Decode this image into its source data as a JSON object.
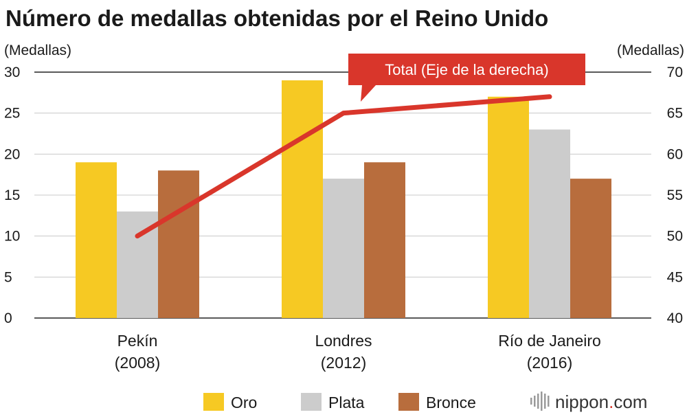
{
  "colors": {
    "gold": "#f6c923",
    "silver": "#cccccc",
    "bronze": "#b86d3d",
    "total": "#d9362b",
    "brand_text": "#333333",
    "brand_accent": "#d9362b"
  },
  "brand": {
    "name": "nippon",
    "dot": ".",
    "tld": "com",
    "icon": "sound-wave-icon"
  },
  "chart_data": {
    "type": "bar",
    "title": "Número de medallas obtenidas por el Reino Unido",
    "y_left_unit": "(Medallas)",
    "y_right_unit": "(Medallas)",
    "categories": [
      [
        "Pekín",
        "(2008)"
      ],
      [
        "Londres",
        "(2012)"
      ],
      [
        "Río de Janeiro",
        "(2016)"
      ]
    ],
    "ylim_left": [
      0,
      30
    ],
    "yticks_left": [
      0,
      5,
      10,
      15,
      20,
      25,
      30
    ],
    "ylim_right": [
      40,
      70
    ],
    "yticks_right": [
      40,
      45,
      50,
      55,
      60,
      65,
      70
    ],
    "grid": true,
    "legend_position": "bottom",
    "series": [
      {
        "name": "Oro",
        "axis": "left",
        "type": "bar",
        "color": "#f6c923",
        "values": [
          19,
          29,
          27
        ]
      },
      {
        "name": "Plata",
        "axis": "left",
        "type": "bar",
        "color": "#cccccc",
        "values": [
          13,
          17,
          23
        ]
      },
      {
        "name": "Bronce",
        "axis": "left",
        "type": "bar",
        "color": "#b86d3d",
        "values": [
          18,
          19,
          17
        ]
      },
      {
        "name": "Total",
        "axis": "right",
        "type": "line",
        "color": "#d9362b",
        "values": [
          50,
          65,
          67
        ]
      }
    ],
    "annotation": "Total (Eje de la derecha)"
  }
}
